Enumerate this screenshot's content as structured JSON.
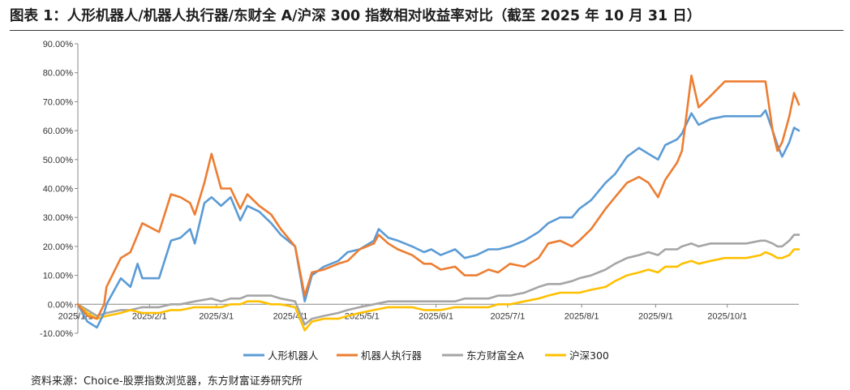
{
  "title": "图表 1：人形机器人/机器人执行器/东财全 A/沪深 300 指数相对收益率对比（截至 2025 年 10 月 31 日）",
  "source": "资料来源：Choice-股票指数浏览器，东方财富证券研究所",
  "chart_data": {
    "type": "line",
    "title": "图表 1：人形机器人/机器人执行器/东财全 A/沪深 300 指数相对收益率对比（截至 2025 年 10 月 31 日）",
    "xlabel": "",
    "ylabel": "",
    "ylim": [
      -10,
      90
    ],
    "xlim": [
      "2025-01-02",
      "2025-10-31"
    ],
    "y_ticks": [
      "90.00%",
      "80.00%",
      "70.00%",
      "60.00%",
      "50.00%",
      "40.00%",
      "30.00%",
      "20.00%",
      "10.00%",
      "0.00%",
      "-10.00%"
    ],
    "x_ticks": [
      "2025/1/1",
      "2025/2/1",
      "2025/3/1",
      "2025/4/1",
      "2025/5/1",
      "2025/6/1",
      "2025/7/1",
      "2025/8/1",
      "2025/9/1",
      "2025/10/1"
    ],
    "legend_position": "bottom",
    "grid": false,
    "series": [
      {
        "name": "人形机器人",
        "color": "#5B9BD5",
        "points": [
          [
            "2025-01-02",
            0
          ],
          [
            "2025-01-06",
            -6
          ],
          [
            "2025-01-10",
            -8
          ],
          [
            "2025-01-13",
            -3
          ],
          [
            "2025-01-14",
            0
          ],
          [
            "2025-01-20",
            9
          ],
          [
            "2025-01-24",
            6
          ],
          [
            "2025-01-27",
            14
          ],
          [
            "2025-01-29",
            9
          ],
          [
            "2025-02-05",
            9
          ],
          [
            "2025-02-10",
            22
          ],
          [
            "2025-02-14",
            23
          ],
          [
            "2025-02-18",
            26
          ],
          [
            "2025-02-20",
            21
          ],
          [
            "2025-02-24",
            35
          ],
          [
            "2025-02-27",
            37
          ],
          [
            "2025-03-03",
            34
          ],
          [
            "2025-03-07",
            37
          ],
          [
            "2025-03-11",
            29
          ],
          [
            "2025-03-14",
            34
          ],
          [
            "2025-03-19",
            32
          ],
          [
            "2025-03-24",
            28
          ],
          [
            "2025-03-28",
            24
          ],
          [
            "2025-04-03",
            20
          ],
          [
            "2025-04-07",
            1
          ],
          [
            "2025-04-10",
            10
          ],
          [
            "2025-04-15",
            13
          ],
          [
            "2025-04-21",
            15
          ],
          [
            "2025-04-25",
            18
          ],
          [
            "2025-04-30",
            19
          ],
          [
            "2025-05-06",
            22
          ],
          [
            "2025-05-08",
            26
          ],
          [
            "2025-05-12",
            23
          ],
          [
            "2025-05-16",
            22
          ],
          [
            "2025-05-22",
            20
          ],
          [
            "2025-05-27",
            18
          ],
          [
            "2025-05-30",
            19
          ],
          [
            "2025-06-03",
            17
          ],
          [
            "2025-06-09",
            19
          ],
          [
            "2025-06-13",
            16
          ],
          [
            "2025-06-18",
            17
          ],
          [
            "2025-06-23",
            19
          ],
          [
            "2025-06-27",
            19
          ],
          [
            "2025-07-02",
            20
          ],
          [
            "2025-07-08",
            22
          ],
          [
            "2025-07-14",
            25
          ],
          [
            "2025-07-18",
            28
          ],
          [
            "2025-07-23",
            30
          ],
          [
            "2025-07-28",
            30
          ],
          [
            "2025-07-31",
            33
          ],
          [
            "2025-08-05",
            36
          ],
          [
            "2025-08-11",
            42
          ],
          [
            "2025-08-15",
            45
          ],
          [
            "2025-08-20",
            51
          ],
          [
            "2025-08-25",
            54
          ],
          [
            "2025-08-29",
            52
          ],
          [
            "2025-09-02",
            50
          ],
          [
            "2025-09-05",
            55
          ],
          [
            "2025-09-10",
            57
          ],
          [
            "2025-09-12",
            59
          ],
          [
            "2025-09-16",
            66
          ],
          [
            "2025-09-19",
            62
          ],
          [
            "2025-09-24",
            64
          ],
          [
            "2025-09-30",
            65
          ],
          [
            "2025-10-09",
            65
          ],
          [
            "2025-10-15",
            65
          ],
          [
            "2025-10-17",
            67
          ],
          [
            "2025-10-20",
            60
          ],
          [
            "2025-10-22",
            55
          ],
          [
            "2025-10-24",
            51
          ],
          [
            "2025-10-27",
            56
          ],
          [
            "2025-10-29",
            61
          ],
          [
            "2025-10-31",
            60
          ]
        ]
      },
      {
        "name": "机器人执行器",
        "color": "#ED7D31",
        "points": [
          [
            "2025-01-02",
            0
          ],
          [
            "2025-01-06",
            -4
          ],
          [
            "2025-01-10",
            -5
          ],
          [
            "2025-01-13",
            0
          ],
          [
            "2025-01-14",
            6
          ],
          [
            "2025-01-20",
            16
          ],
          [
            "2025-01-24",
            18
          ],
          [
            "2025-01-27",
            24
          ],
          [
            "2025-01-29",
            28
          ],
          [
            "2025-02-05",
            25
          ],
          [
            "2025-02-10",
            38
          ],
          [
            "2025-02-14",
            37
          ],
          [
            "2025-02-18",
            35
          ],
          [
            "2025-02-20",
            31
          ],
          [
            "2025-02-24",
            42
          ],
          [
            "2025-02-27",
            52
          ],
          [
            "2025-03-03",
            40
          ],
          [
            "2025-03-07",
            40
          ],
          [
            "2025-03-11",
            33
          ],
          [
            "2025-03-14",
            38
          ],
          [
            "2025-03-19",
            34
          ],
          [
            "2025-03-24",
            31
          ],
          [
            "2025-03-28",
            26
          ],
          [
            "2025-04-03",
            20
          ],
          [
            "2025-04-07",
            3
          ],
          [
            "2025-04-10",
            11
          ],
          [
            "2025-04-15",
            12
          ],
          [
            "2025-04-21",
            14
          ],
          [
            "2025-04-25",
            15
          ],
          [
            "2025-04-30",
            19
          ],
          [
            "2025-05-06",
            21
          ],
          [
            "2025-05-08",
            24
          ],
          [
            "2025-05-12",
            21
          ],
          [
            "2025-05-16",
            19
          ],
          [
            "2025-05-22",
            17
          ],
          [
            "2025-05-27",
            14
          ],
          [
            "2025-05-30",
            14
          ],
          [
            "2025-06-03",
            12
          ],
          [
            "2025-06-09",
            13
          ],
          [
            "2025-06-13",
            10
          ],
          [
            "2025-06-18",
            10
          ],
          [
            "2025-06-23",
            12
          ],
          [
            "2025-06-27",
            11
          ],
          [
            "2025-07-02",
            14
          ],
          [
            "2025-07-08",
            13
          ],
          [
            "2025-07-14",
            16
          ],
          [
            "2025-07-18",
            21
          ],
          [
            "2025-07-23",
            22
          ],
          [
            "2025-07-28",
            20
          ],
          [
            "2025-07-31",
            22
          ],
          [
            "2025-08-05",
            26
          ],
          [
            "2025-08-11",
            33
          ],
          [
            "2025-08-15",
            37
          ],
          [
            "2025-08-20",
            42
          ],
          [
            "2025-08-25",
            44
          ],
          [
            "2025-08-29",
            42
          ],
          [
            "2025-09-02",
            37
          ],
          [
            "2025-09-05",
            43
          ],
          [
            "2025-09-10",
            49
          ],
          [
            "2025-09-12",
            53
          ],
          [
            "2025-09-16",
            79
          ],
          [
            "2025-09-19",
            68
          ],
          [
            "2025-09-24",
            72
          ],
          [
            "2025-09-30",
            77
          ],
          [
            "2025-10-09",
            77
          ],
          [
            "2025-10-15",
            77
          ],
          [
            "2025-10-17",
            77
          ],
          [
            "2025-10-20",
            60
          ],
          [
            "2025-10-22",
            53
          ],
          [
            "2025-10-24",
            56
          ],
          [
            "2025-10-27",
            65
          ],
          [
            "2025-10-29",
            73
          ],
          [
            "2025-10-31",
            69
          ]
        ]
      },
      {
        "name": "东方财富全A",
        "color": "#A5A5A5",
        "points": [
          [
            "2025-01-02",
            0
          ],
          [
            "2025-01-06",
            -2
          ],
          [
            "2025-01-10",
            -4
          ],
          [
            "2025-01-14",
            -3
          ],
          [
            "2025-01-20",
            -2
          ],
          [
            "2025-01-24",
            -2
          ],
          [
            "2025-01-29",
            -1
          ],
          [
            "2025-02-05",
            -1
          ],
          [
            "2025-02-10",
            0
          ],
          [
            "2025-02-14",
            0
          ],
          [
            "2025-02-20",
            1
          ],
          [
            "2025-02-27",
            2
          ],
          [
            "2025-03-03",
            1
          ],
          [
            "2025-03-07",
            2
          ],
          [
            "2025-03-11",
            2
          ],
          [
            "2025-03-14",
            3
          ],
          [
            "2025-03-19",
            3
          ],
          [
            "2025-03-24",
            3
          ],
          [
            "2025-03-28",
            2
          ],
          [
            "2025-04-03",
            1
          ],
          [
            "2025-04-07",
            -7
          ],
          [
            "2025-04-10",
            -5
          ],
          [
            "2025-04-15",
            -4
          ],
          [
            "2025-04-21",
            -3
          ],
          [
            "2025-04-25",
            -2
          ],
          [
            "2025-04-30",
            -1
          ],
          [
            "2025-05-06",
            0
          ],
          [
            "2025-05-12",
            1
          ],
          [
            "2025-05-16",
            1
          ],
          [
            "2025-05-22",
            1
          ],
          [
            "2025-05-27",
            1
          ],
          [
            "2025-05-30",
            1
          ],
          [
            "2025-06-03",
            1
          ],
          [
            "2025-06-09",
            1
          ],
          [
            "2025-06-13",
            2
          ],
          [
            "2025-06-18",
            2
          ],
          [
            "2025-06-23",
            2
          ],
          [
            "2025-06-27",
            3
          ],
          [
            "2025-07-02",
            3
          ],
          [
            "2025-07-08",
            4
          ],
          [
            "2025-07-14",
            6
          ],
          [
            "2025-07-18",
            7
          ],
          [
            "2025-07-23",
            7
          ],
          [
            "2025-07-28",
            8
          ],
          [
            "2025-07-31",
            9
          ],
          [
            "2025-08-05",
            10
          ],
          [
            "2025-08-11",
            12
          ],
          [
            "2025-08-15",
            14
          ],
          [
            "2025-08-20",
            16
          ],
          [
            "2025-08-25",
            17
          ],
          [
            "2025-08-29",
            18
          ],
          [
            "2025-09-02",
            17
          ],
          [
            "2025-09-05",
            19
          ],
          [
            "2025-09-10",
            19
          ],
          [
            "2025-09-12",
            20
          ],
          [
            "2025-09-16",
            21
          ],
          [
            "2025-09-19",
            20
          ],
          [
            "2025-09-24",
            21
          ],
          [
            "2025-09-30",
            21
          ],
          [
            "2025-10-09",
            21
          ],
          [
            "2025-10-15",
            22
          ],
          [
            "2025-10-17",
            22
          ],
          [
            "2025-10-20",
            21
          ],
          [
            "2025-10-22",
            20
          ],
          [
            "2025-10-24",
            20
          ],
          [
            "2025-10-27",
            22
          ],
          [
            "2025-10-29",
            24
          ],
          [
            "2025-10-31",
            24
          ]
        ]
      },
      {
        "name": "沪深300",
        "color": "#FFC000",
        "points": [
          [
            "2025-01-02",
            0
          ],
          [
            "2025-01-06",
            -3
          ],
          [
            "2025-01-10",
            -5
          ],
          [
            "2025-01-14",
            -4
          ],
          [
            "2025-01-20",
            -3
          ],
          [
            "2025-01-24",
            -2
          ],
          [
            "2025-01-29",
            -3
          ],
          [
            "2025-02-05",
            -3
          ],
          [
            "2025-02-10",
            -2
          ],
          [
            "2025-02-14",
            -2
          ],
          [
            "2025-02-20",
            -1
          ],
          [
            "2025-02-27",
            -1
          ],
          [
            "2025-03-03",
            -1
          ],
          [
            "2025-03-07",
            0
          ],
          [
            "2025-03-11",
            0
          ],
          [
            "2025-03-14",
            1
          ],
          [
            "2025-03-19",
            1
          ],
          [
            "2025-03-24",
            0
          ],
          [
            "2025-03-28",
            0
          ],
          [
            "2025-04-03",
            -1
          ],
          [
            "2025-04-07",
            -9
          ],
          [
            "2025-04-10",
            -6
          ],
          [
            "2025-04-15",
            -5
          ],
          [
            "2025-04-21",
            -5
          ],
          [
            "2025-04-25",
            -4
          ],
          [
            "2025-04-30",
            -3
          ],
          [
            "2025-05-06",
            -2
          ],
          [
            "2025-05-12",
            -1
          ],
          [
            "2025-05-16",
            -1
          ],
          [
            "2025-05-22",
            -1
          ],
          [
            "2025-05-27",
            -2
          ],
          [
            "2025-05-30",
            -2
          ],
          [
            "2025-06-03",
            -2
          ],
          [
            "2025-06-09",
            -1
          ],
          [
            "2025-06-13",
            -1
          ],
          [
            "2025-06-18",
            -1
          ],
          [
            "2025-06-23",
            -1
          ],
          [
            "2025-06-27",
            0
          ],
          [
            "2025-07-02",
            0
          ],
          [
            "2025-07-08",
            1
          ],
          [
            "2025-07-14",
            2
          ],
          [
            "2025-07-18",
            3
          ],
          [
            "2025-07-23",
            4
          ],
          [
            "2025-07-28",
            4
          ],
          [
            "2025-07-31",
            4
          ],
          [
            "2025-08-05",
            5
          ],
          [
            "2025-08-11",
            6
          ],
          [
            "2025-08-15",
            8
          ],
          [
            "2025-08-20",
            10
          ],
          [
            "2025-08-25",
            11
          ],
          [
            "2025-08-29",
            12
          ],
          [
            "2025-09-02",
            11
          ],
          [
            "2025-09-05",
            13
          ],
          [
            "2025-09-10",
            13
          ],
          [
            "2025-09-12",
            14
          ],
          [
            "2025-09-16",
            15
          ],
          [
            "2025-09-19",
            14
          ],
          [
            "2025-09-24",
            15
          ],
          [
            "2025-09-30",
            16
          ],
          [
            "2025-10-09",
            16
          ],
          [
            "2025-10-15",
            17
          ],
          [
            "2025-10-17",
            18
          ],
          [
            "2025-10-20",
            17
          ],
          [
            "2025-10-22",
            16
          ],
          [
            "2025-10-24",
            16
          ],
          [
            "2025-10-27",
            17
          ],
          [
            "2025-10-29",
            19
          ],
          [
            "2025-10-31",
            19
          ]
        ]
      }
    ]
  }
}
